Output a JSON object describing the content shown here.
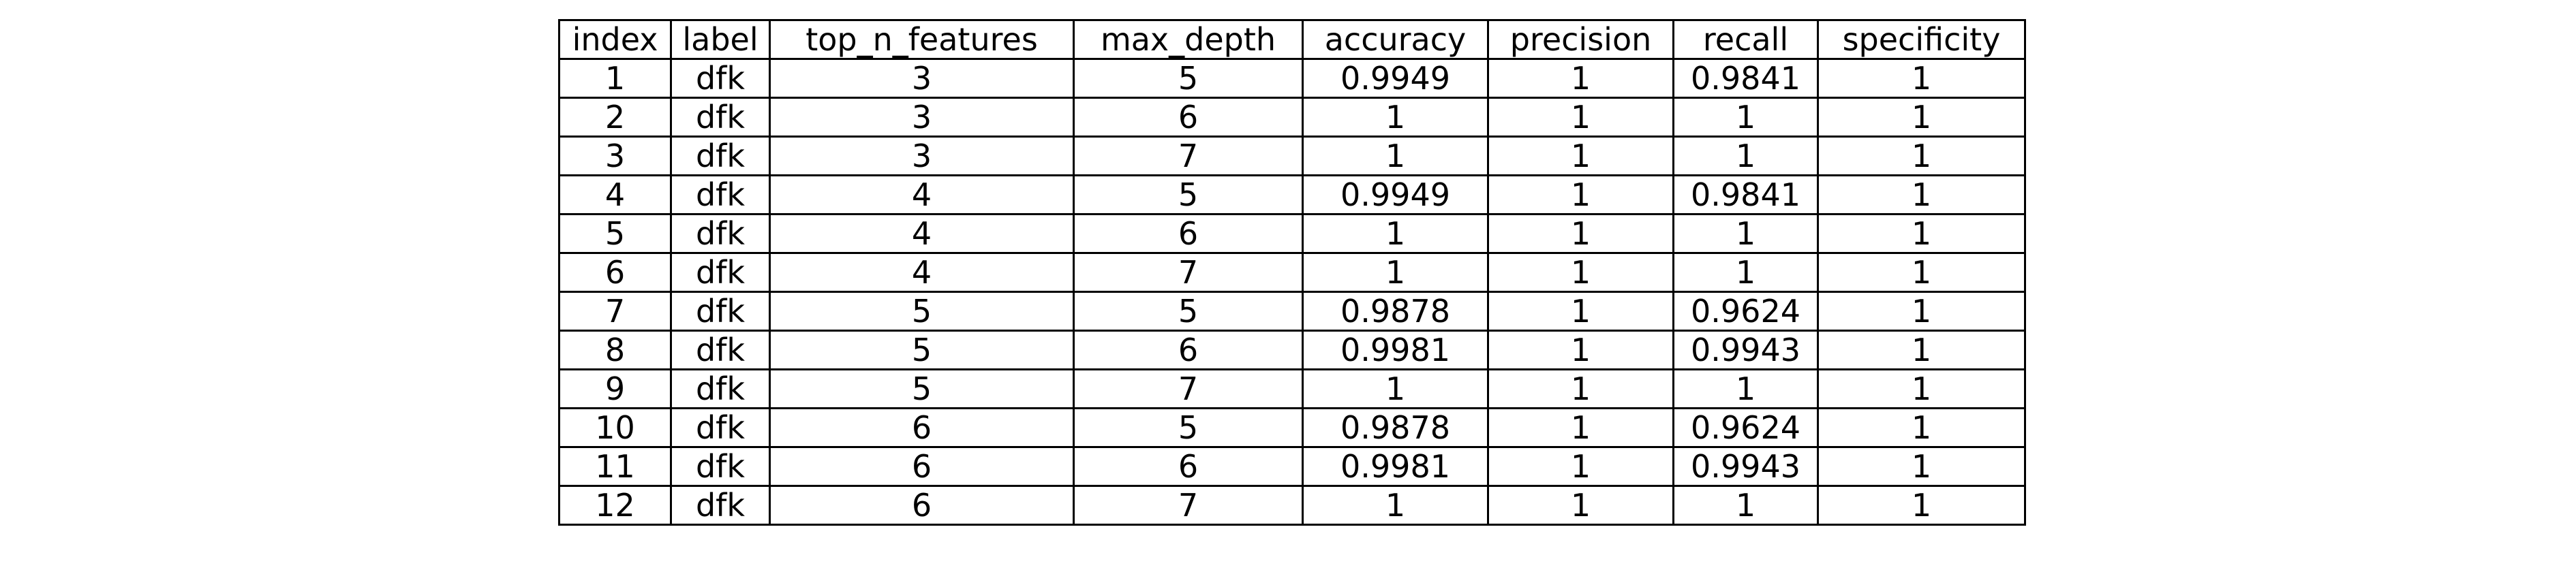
{
  "chart_data": {
    "type": "table",
    "columns": [
      "index",
      "label",
      "top_n_features",
      "max_depth",
      "accuracy",
      "precision",
      "recall",
      "specificity"
    ],
    "rows": [
      [
        "1",
        "dfk",
        "3",
        "5",
        "0.9949",
        "1",
        "0.9841",
        "1"
      ],
      [
        "2",
        "dfk",
        "3",
        "6",
        "1",
        "1",
        "1",
        "1"
      ],
      [
        "3",
        "dfk",
        "3",
        "7",
        "1",
        "1",
        "1",
        "1"
      ],
      [
        "4",
        "dfk",
        "4",
        "5",
        "0.9949",
        "1",
        "0.9841",
        "1"
      ],
      [
        "5",
        "dfk",
        "4",
        "6",
        "1",
        "1",
        "1",
        "1"
      ],
      [
        "6",
        "dfk",
        "4",
        "7",
        "1",
        "1",
        "1",
        "1"
      ],
      [
        "7",
        "dfk",
        "5",
        "5",
        "0.9878",
        "1",
        "0.9624",
        "1"
      ],
      [
        "8",
        "dfk",
        "5",
        "6",
        "0.9981",
        "1",
        "0.9943",
        "1"
      ],
      [
        "9",
        "dfk",
        "5",
        "7",
        "1",
        "1",
        "1",
        "1"
      ],
      [
        "10",
        "dfk",
        "6",
        "5",
        "0.9878",
        "1",
        "0.9624",
        "1"
      ],
      [
        "11",
        "dfk",
        "6",
        "6",
        "0.9981",
        "1",
        "0.9943",
        "1"
      ],
      [
        "12",
        "dfk",
        "6",
        "7",
        "1",
        "1",
        "1",
        "1"
      ]
    ]
  }
}
